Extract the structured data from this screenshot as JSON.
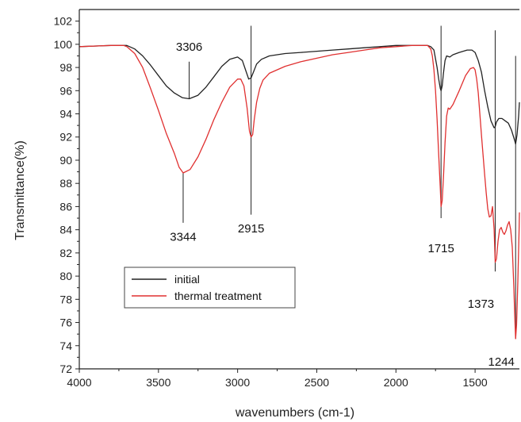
{
  "chart_data": {
    "type": "line",
    "xlabel": "wavenumbers (cm-1)",
    "ylabel": "Transmittance(%)",
    "xlim": [
      4000,
      1220
    ],
    "ylim": [
      72,
      103
    ],
    "x_reversed": true,
    "x_ticks": [
      4000,
      3500,
      3000,
      2500,
      2000,
      1500
    ],
    "y_ticks": [
      72,
      74,
      76,
      78,
      80,
      82,
      84,
      86,
      88,
      90,
      92,
      94,
      96,
      98,
      100,
      102
    ],
    "legend": {
      "position": "lower-left"
    },
    "series": [
      {
        "name": "initial",
        "color": "#222222",
        "x": [
          4000,
          3800,
          3700,
          3650,
          3600,
          3550,
          3500,
          3450,
          3400,
          3350,
          3306,
          3250,
          3200,
          3150,
          3100,
          3050,
          3000,
          2970,
          2950,
          2930,
          2915,
          2900,
          2880,
          2850,
          2800,
          2700,
          2600,
          2500,
          2400,
          2300,
          2200,
          2100,
          2000,
          1900,
          1800,
          1780,
          1760,
          1740,
          1730,
          1720,
          1715,
          1708,
          1700,
          1690,
          1680,
          1660,
          1640,
          1600,
          1550,
          1520,
          1500,
          1480,
          1460,
          1440,
          1420,
          1410,
          1400,
          1390,
          1380,
          1373,
          1365,
          1350,
          1330,
          1310,
          1290,
          1270,
          1250,
          1244,
          1235,
          1225,
          1220
        ],
        "values": [
          99.8,
          99.9,
          99.9,
          99.6,
          99.0,
          98.2,
          97.3,
          96.4,
          95.8,
          95.4,
          95.3,
          95.6,
          96.3,
          97.2,
          98.1,
          98.7,
          98.9,
          98.6,
          97.8,
          97.0,
          97.1,
          97.6,
          98.3,
          98.7,
          99.0,
          99.2,
          99.3,
          99.4,
          99.5,
          99.6,
          99.7,
          99.8,
          99.9,
          99.9,
          99.9,
          99.8,
          99.5,
          98.0,
          97.0,
          96.2,
          96.0,
          96.4,
          97.5,
          98.6,
          99.0,
          98.9,
          99.1,
          99.3,
          99.5,
          99.5,
          99.3,
          98.6,
          97.6,
          96.0,
          94.6,
          94.0,
          93.4,
          93.1,
          92.8,
          92.9,
          93.3,
          93.6,
          93.6,
          93.4,
          93.2,
          92.6,
          91.7,
          91.4,
          92.2,
          93.8,
          95.0
        ]
      },
      {
        "name": "thermal treatment",
        "color": "#e03030",
        "x": [
          4000,
          3800,
          3720,
          3700,
          3650,
          3600,
          3550,
          3500,
          3450,
          3400,
          3370,
          3344,
          3300,
          3250,
          3200,
          3150,
          3100,
          3050,
          3000,
          2980,
          2960,
          2940,
          2925,
          2915,
          2905,
          2895,
          2880,
          2860,
          2840,
          2800,
          2700,
          2600,
          2500,
          2400,
          2300,
          2200,
          2100,
          2000,
          1900,
          1800,
          1780,
          1770,
          1760,
          1750,
          1740,
          1730,
          1720,
          1715,
          1708,
          1700,
          1690,
          1680,
          1670,
          1660,
          1640,
          1600,
          1560,
          1530,
          1510,
          1500,
          1490,
          1480,
          1470,
          1460,
          1450,
          1440,
          1430,
          1420,
          1410,
          1400,
          1390,
          1380,
          1373,
          1365,
          1355,
          1345,
          1335,
          1325,
          1315,
          1305,
          1295,
          1285,
          1275,
          1265,
          1255,
          1248,
          1244,
          1238,
          1230,
          1222,
          1220
        ],
        "values": [
          99.8,
          99.9,
          99.9,
          99.8,
          99.2,
          98.0,
          96.2,
          94.3,
          92.3,
          90.6,
          89.4,
          88.9,
          89.2,
          90.3,
          91.8,
          93.5,
          95.0,
          96.3,
          97.0,
          97.0,
          96.4,
          94.5,
          92.5,
          92.0,
          92.2,
          93.5,
          95.0,
          96.2,
          96.9,
          97.5,
          98.1,
          98.5,
          98.8,
          99.1,
          99.3,
          99.5,
          99.7,
          99.8,
          99.9,
          99.9,
          99.6,
          99.0,
          97.8,
          96.0,
          93.5,
          90.5,
          87.6,
          86.0,
          86.5,
          88.5,
          91.5,
          93.8,
          94.5,
          94.4,
          94.8,
          96.0,
          97.3,
          97.9,
          98.0,
          97.8,
          97.0,
          95.8,
          94.0,
          92.2,
          90.5,
          88.8,
          87.2,
          85.8,
          85.1,
          85.2,
          86.0,
          84.0,
          81.2,
          81.5,
          83.0,
          84.0,
          84.2,
          83.8,
          83.6,
          83.9,
          84.4,
          84.7,
          84.0,
          82.5,
          79.0,
          76.0,
          74.6,
          75.8,
          79.5,
          84.0,
          85.5
        ]
      }
    ],
    "annotations": [
      {
        "label": "3306",
        "x": 3306,
        "line_from": 95.3,
        "line_to": 98.5,
        "label_y": 99.8,
        "side": "above"
      },
      {
        "label": "3344",
        "x": 3344,
        "line_from": 88.9,
        "line_to": 84.6,
        "label_y": 83.4,
        "side": "below"
      },
      {
        "label": "2915",
        "x": 2915,
        "line_from": 85.3,
        "line_to": 101.6,
        "label_y": 84.1,
        "side": "below"
      },
      {
        "label": "1715",
        "x": 1715,
        "line_from": 85.0,
        "line_to": 101.6,
        "label_y": 82.4,
        "side": "below"
      },
      {
        "label": "1373",
        "x": 1373,
        "line_from": 80.4,
        "line_to": 101.2,
        "label_y": 77.6,
        "side": "below-left"
      },
      {
        "label": "1244",
        "x": 1244,
        "line_from": 74.6,
        "line_to": 99.0,
        "label_y": 72.6,
        "side": "below-left"
      }
    ]
  }
}
